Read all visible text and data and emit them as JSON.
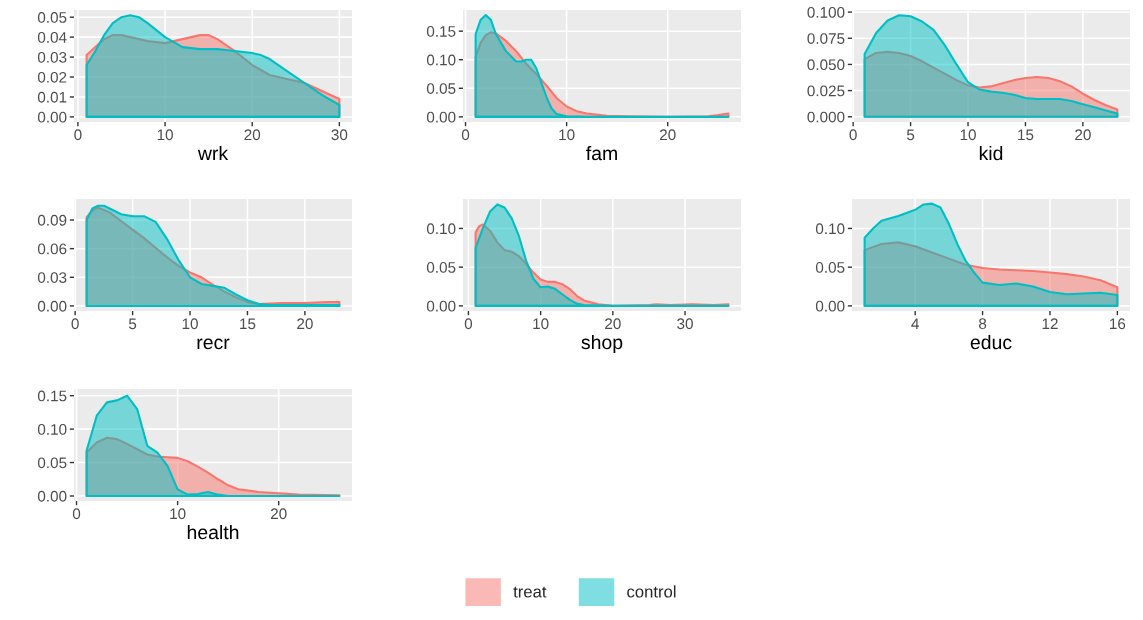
{
  "chart_data": [
    {
      "type": "area",
      "xlabel": "wrk",
      "xlim": [
        -0.45,
        31.45
      ],
      "xticks": [
        0,
        10,
        20,
        30
      ],
      "ylim": [
        -0.00255,
        0.0536
      ],
      "yticks": [
        {
          "value": 0,
          "label": "0.00"
        },
        {
          "value": 0.01,
          "label": "0.01"
        },
        {
          "value": 0.02,
          "label": "0.02"
        },
        {
          "value": 0.03,
          "label": "0.03"
        },
        {
          "value": 0.04,
          "label": "0.04"
        },
        {
          "value": 0.05,
          "label": "0.05"
        }
      ],
      "grid": true,
      "legend": "bottom",
      "series": [
        {
          "name": "treat",
          "color": "#f8766d",
          "x": [
            1,
            2,
            3,
            4,
            5,
            6,
            8,
            10,
            12,
            14,
            15,
            16,
            18,
            20,
            22,
            24,
            26,
            28,
            30
          ],
          "values": [
            0.031,
            0.035,
            0.039,
            0.041,
            0.041,
            0.04,
            0.038,
            0.037,
            0.039,
            0.041,
            0.041,
            0.039,
            0.033,
            0.026,
            0.021,
            0.019,
            0.017,
            0.013,
            0.009
          ]
        },
        {
          "name": "control",
          "color": "#00bfc4",
          "x": [
            1,
            2,
            3,
            4,
            5,
            6,
            7,
            8,
            10,
            12,
            14,
            16,
            18,
            20,
            21,
            22,
            24,
            26,
            28,
            30
          ],
          "values": [
            0.026,
            0.033,
            0.041,
            0.047,
            0.05,
            0.051,
            0.05,
            0.047,
            0.04,
            0.035,
            0.034,
            0.034,
            0.033,
            0.032,
            0.031,
            0.029,
            0.023,
            0.017,
            0.011,
            0.006
          ]
        }
      ]
    },
    {
      "type": "area",
      "xlabel": "fam",
      "xlim": [
        -0.25,
        27.25
      ],
      "xticks": [
        0,
        10,
        20
      ],
      "ylim": [
        -0.009,
        0.187
      ],
      "yticks": [
        {
          "value": 0,
          "label": "0.00"
        },
        {
          "value": 0.05,
          "label": "0.05"
        },
        {
          "value": 0.1,
          "label": "0.10"
        },
        {
          "value": 0.15,
          "label": "0.15"
        }
      ],
      "grid": true,
      "legend": false,
      "series": [
        {
          "name": "treat",
          "color": "#f8766d",
          "x": [
            1,
            1.5,
            2,
            2.5,
            3,
            4,
            5,
            6,
            7,
            8,
            9,
            10,
            11,
            12,
            14,
            16,
            20,
            24,
            25,
            26
          ],
          "values": [
            0.105,
            0.13,
            0.143,
            0.148,
            0.146,
            0.133,
            0.115,
            0.093,
            0.075,
            0.055,
            0.033,
            0.018,
            0.01,
            0.006,
            0.002,
            0.001,
            0.0,
            0.001,
            0.003,
            0.006
          ]
        },
        {
          "name": "control",
          "color": "#00bfc4",
          "x": [
            1,
            1.5,
            2,
            2.5,
            3,
            4,
            5,
            5.5,
            6,
            6.5,
            7,
            7.5,
            8,
            8.5,
            9,
            10,
            12,
            26
          ],
          "values": [
            0.145,
            0.17,
            0.178,
            0.17,
            0.145,
            0.115,
            0.097,
            0.097,
            0.1,
            0.1,
            0.085,
            0.06,
            0.035,
            0.015,
            0.005,
            0.001,
            0.0,
            0.0
          ]
        }
      ]
    },
    {
      "type": "area",
      "xlabel": "kid",
      "xlim": [
        -0.1,
        24.1
      ],
      "xticks": [
        0,
        5,
        10,
        15,
        20
      ],
      "ylim": [
        -0.005,
        0.102
      ],
      "yticks": [
        {
          "value": 0,
          "label": "0.000"
        },
        {
          "value": 0.025,
          "label": "0.025"
        },
        {
          "value": 0.05,
          "label": "0.050"
        },
        {
          "value": 0.075,
          "label": "0.075"
        },
        {
          "value": 0.1,
          "label": "0.100"
        }
      ],
      "grid": true,
      "legend": false,
      "series": [
        {
          "name": "treat",
          "color": "#f8766d",
          "x": [
            1,
            2,
            3,
            4,
            5,
            6,
            7,
            8,
            9,
            10,
            11,
            12,
            13,
            14,
            15,
            16,
            17,
            18,
            19,
            20,
            21,
            22,
            23
          ],
          "values": [
            0.055,
            0.061,
            0.062,
            0.061,
            0.058,
            0.053,
            0.047,
            0.041,
            0.035,
            0.03,
            0.028,
            0.029,
            0.032,
            0.035,
            0.037,
            0.038,
            0.037,
            0.034,
            0.029,
            0.022,
            0.016,
            0.011,
            0.007
          ]
        },
        {
          "name": "control",
          "color": "#00bfc4",
          "x": [
            1,
            2,
            3,
            4,
            5,
            6,
            7,
            8,
            9,
            10,
            11,
            12,
            13,
            14,
            15,
            16,
            17,
            18,
            19,
            20,
            21,
            22,
            23
          ],
          "values": [
            0.06,
            0.08,
            0.092,
            0.097,
            0.096,
            0.091,
            0.083,
            0.068,
            0.05,
            0.033,
            0.026,
            0.024,
            0.023,
            0.021,
            0.018,
            0.017,
            0.017,
            0.017,
            0.015,
            0.012,
            0.009,
            0.006,
            0.003
          ]
        }
      ]
    },
    {
      "type": "area",
      "xlabel": "recr",
      "xlim": [
        -0.1,
        24.1
      ],
      "xticks": [
        0,
        5,
        10,
        15,
        20
      ],
      "ylim": [
        -0.0053,
        0.112
      ],
      "yticks": [
        {
          "value": 0,
          "label": "0.00"
        },
        {
          "value": 0.03,
          "label": "0.03"
        },
        {
          "value": 0.06,
          "label": "0.06"
        },
        {
          "value": 0.09,
          "label": "0.09"
        }
      ],
      "grid": true,
      "legend": false,
      "series": [
        {
          "name": "treat",
          "color": "#f8766d",
          "x": [
            1,
            1.5,
            2,
            3,
            4,
            5,
            6,
            7,
            8,
            9,
            10,
            11,
            12,
            13,
            14,
            15,
            16,
            18,
            20,
            22,
            23
          ],
          "values": [
            0.093,
            0.1,
            0.103,
            0.098,
            0.089,
            0.08,
            0.071,
            0.061,
            0.051,
            0.042,
            0.035,
            0.03,
            0.022,
            0.015,
            0.009,
            0.004,
            0.002,
            0.003,
            0.003,
            0.004,
            0.004
          ]
        },
        {
          "name": "control",
          "color": "#00bfc4",
          "x": [
            1,
            1.5,
            2,
            2.5,
            3,
            4,
            5,
            6,
            7,
            8,
            9,
            10,
            11,
            12,
            13,
            14,
            15,
            16,
            17,
            23
          ],
          "values": [
            0.09,
            0.102,
            0.105,
            0.105,
            0.102,
            0.096,
            0.094,
            0.094,
            0.088,
            0.07,
            0.048,
            0.03,
            0.023,
            0.021,
            0.019,
            0.012,
            0.006,
            0.002,
            0.001,
            0.001
          ]
        }
      ]
    },
    {
      "type": "area",
      "xlabel": "shop",
      "xlim": [
        -0.75,
        37.75
      ],
      "xticks": [
        0,
        10,
        20,
        30
      ],
      "ylim": [
        -0.0066,
        0.138
      ],
      "yticks": [
        {
          "value": 0,
          "label": "0.00"
        },
        {
          "value": 0.05,
          "label": "0.05"
        },
        {
          "value": 0.1,
          "label": "0.10"
        }
      ],
      "grid": true,
      "legend": false,
      "series": [
        {
          "name": "treat",
          "color": "#f8766d",
          "x": [
            1,
            1.5,
            2,
            3,
            4,
            5,
            6,
            7,
            8,
            9,
            10,
            11,
            12,
            13,
            14,
            15,
            16,
            18,
            20,
            25,
            26,
            28,
            31,
            34,
            36
          ],
          "values": [
            0.095,
            0.103,
            0.105,
            0.097,
            0.082,
            0.072,
            0.07,
            0.064,
            0.054,
            0.043,
            0.034,
            0.031,
            0.031,
            0.028,
            0.022,
            0.013,
            0.007,
            0.002,
            0.0,
            0.001,
            0.002,
            0.001,
            0.002,
            0.001,
            0.002
          ]
        },
        {
          "name": "control",
          "color": "#00bfc4",
          "x": [
            1,
            2,
            3,
            4,
            5,
            6,
            7,
            8,
            9,
            10,
            11,
            12,
            13,
            14,
            15,
            16,
            20,
            36
          ],
          "values": [
            0.075,
            0.1,
            0.122,
            0.131,
            0.127,
            0.113,
            0.09,
            0.058,
            0.035,
            0.024,
            0.025,
            0.022,
            0.015,
            0.008,
            0.003,
            0.001,
            0.0,
            0.0
          ]
        }
      ]
    },
    {
      "type": "area",
      "xlabel": "educ",
      "xlim": [
        0.25,
        16.75
      ],
      "xticks": [
        4,
        8,
        12,
        16
      ],
      "ylim": [
        -0.0066,
        0.138
      ],
      "yticks": [
        {
          "value": 0,
          "label": "0.00"
        },
        {
          "value": 0.05,
          "label": "0.05"
        },
        {
          "value": 0.1,
          "label": "0.10"
        }
      ],
      "grid": true,
      "legend": false,
      "series": [
        {
          "name": "treat",
          "color": "#f8766d",
          "x": [
            1,
            2,
            3,
            4,
            5,
            6,
            7,
            8,
            9,
            10,
            11,
            12,
            13,
            14,
            15,
            16
          ],
          "values": [
            0.072,
            0.08,
            0.082,
            0.077,
            0.069,
            0.061,
            0.053,
            0.049,
            0.047,
            0.046,
            0.045,
            0.043,
            0.041,
            0.038,
            0.033,
            0.024
          ]
        },
        {
          "name": "control",
          "color": "#00bfc4",
          "x": [
            1,
            1.5,
            2,
            3,
            4,
            4.5,
            5,
            5.5,
            6,
            6.5,
            7,
            7.5,
            8,
            9,
            10,
            11,
            12,
            13,
            14,
            15,
            16
          ],
          "values": [
            0.088,
            0.1,
            0.11,
            0.116,
            0.124,
            0.131,
            0.132,
            0.127,
            0.106,
            0.08,
            0.058,
            0.043,
            0.03,
            0.027,
            0.029,
            0.025,
            0.018,
            0.015,
            0.016,
            0.017,
            0.014
          ]
        }
      ]
    },
    {
      "type": "area",
      "xlabel": "health",
      "xlim": [
        -0.25,
        27.25
      ],
      "xticks": [
        0,
        10,
        20
      ],
      "ylim": [
        -0.0075,
        0.16
      ],
      "yticks": [
        {
          "value": 0,
          "label": "0.00"
        },
        {
          "value": 0.05,
          "label": "0.05"
        },
        {
          "value": 0.1,
          "label": "0.10"
        },
        {
          "value": 0.15,
          "label": "0.15"
        }
      ],
      "grid": true,
      "legend": "bottom",
      "series": [
        {
          "name": "treat",
          "color": "#f8766d",
          "x": [
            1,
            2,
            3,
            4,
            5,
            6,
            7,
            8,
            9,
            10,
            11,
            12,
            13,
            14,
            15,
            16,
            18,
            20,
            22,
            26
          ],
          "values": [
            0.065,
            0.08,
            0.087,
            0.085,
            0.078,
            0.07,
            0.062,
            0.059,
            0.058,
            0.057,
            0.052,
            0.044,
            0.035,
            0.025,
            0.016,
            0.01,
            0.006,
            0.004,
            0.002,
            0.001
          ]
        },
        {
          "name": "control",
          "color": "#00bfc4",
          "x": [
            1,
            2,
            3,
            4,
            5,
            6,
            7,
            8,
            9,
            10,
            11,
            12,
            13,
            14,
            15,
            26
          ],
          "values": [
            0.068,
            0.12,
            0.14,
            0.143,
            0.15,
            0.13,
            0.075,
            0.065,
            0.045,
            0.01,
            0.002,
            0.003,
            0.006,
            0.002,
            0.0,
            0.0
          ]
        }
      ]
    }
  ]
}
